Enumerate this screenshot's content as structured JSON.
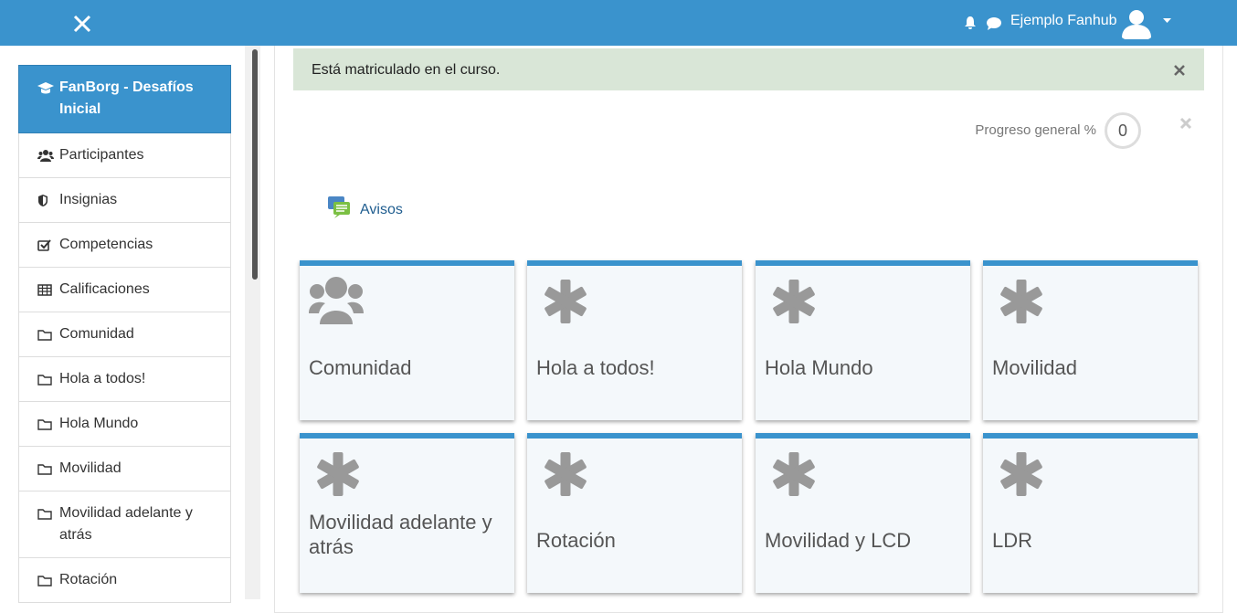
{
  "navbar": {
    "user_name": "Ejemplo Fanhub"
  },
  "sidebar": {
    "course": "FanBorg - Desafíos Inicial",
    "items": [
      "Participantes",
      "Insignias",
      "Competencias",
      "Calificaciones",
      "Comunidad",
      "Hola a todos!",
      "Hola Mundo",
      "Movilidad",
      "Movilidad adelante y atrás",
      "Rotación"
    ]
  },
  "alert": {
    "text": "Está matriculado en el curso."
  },
  "progress": {
    "label": "Progreso general %",
    "value": 0
  },
  "announcements": {
    "label": "Avisos"
  },
  "tiles": [
    "Comunidad",
    "Hola a todos!",
    "Hola Mundo",
    "Movilidad",
    "Movilidad adelante y atrás",
    "Rotación",
    "Movilidad y LCD",
    "LDR"
  ]
}
